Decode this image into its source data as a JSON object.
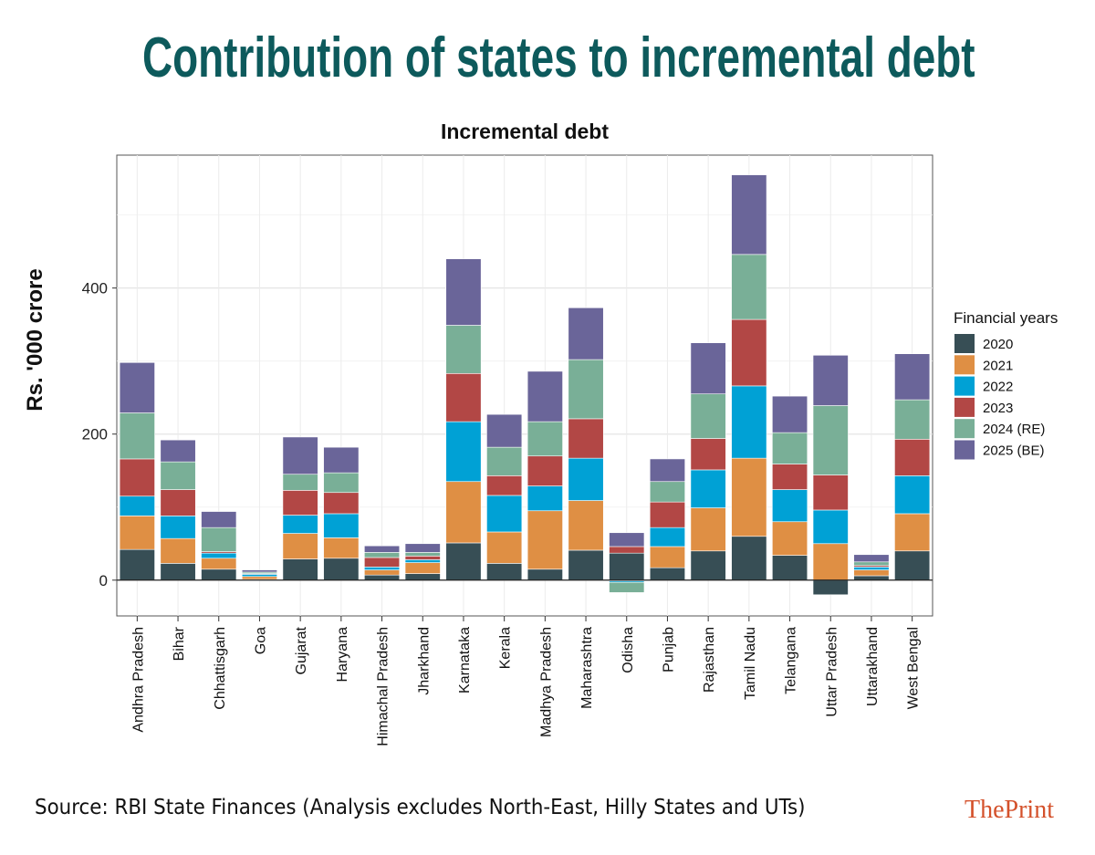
{
  "header": {
    "title": "Contribution of states to incremental debt"
  },
  "footer": {
    "source": "Source: RBI State Finances (Analysis excludes North-East, Hilly States and UTs)",
    "logo": "ThePrint"
  },
  "chart_data": {
    "type": "bar",
    "stacked": true,
    "title": "Incremental debt",
    "xlabel": "",
    "ylabel": "Rs. '000 crore",
    "ylim": [
      -49,
      582
    ],
    "yticks": [
      0,
      200,
      400
    ],
    "grid": true,
    "legend": {
      "title": "Financial years",
      "placement": "right"
    },
    "categories": [
      "Andhra Pradesh",
      "Bihar",
      "Chhattisgarh",
      "Goa",
      "Gujarat",
      "Haryana",
      "Himachal Pradesh",
      "Jharkhand",
      "Karnataka",
      "Kerala",
      "Madhya Pradesh",
      "Maharashtra",
      "Odisha",
      "Punjab",
      "Rajasthan",
      "Tamil Nadu",
      "Telangana",
      "Uttar Pradesh",
      "Uttarakhand",
      "West Bengal"
    ],
    "series": [
      {
        "name": "2020",
        "color": "#374e55",
        "values": [
          42,
          23,
          15,
          1,
          29,
          30,
          7,
          9,
          51,
          23,
          15,
          41,
          37,
          17,
          40,
          60,
          34,
          -20,
          6,
          40
        ]
      },
      {
        "name": "2021",
        "color": "#df8f44",
        "values": [
          46,
          34,
          15,
          4,
          35,
          28,
          7,
          15,
          84,
          43,
          80,
          68,
          -1,
          29,
          59,
          107,
          46,
          50,
          8,
          51
        ]
      },
      {
        "name": "2022",
        "color": "#00a1d5",
        "values": [
          27,
          31,
          7,
          3,
          25,
          33,
          4,
          4,
          82,
          50,
          34,
          58,
          -2,
          26,
          52,
          99,
          44,
          46,
          4,
          52
        ]
      },
      {
        "name": "2023",
        "color": "#b24745",
        "values": [
          51,
          36,
          2,
          1,
          34,
          29,
          13,
          5,
          66,
          27,
          41,
          54,
          9,
          35,
          43,
          91,
          35,
          48,
          2,
          50
        ]
      },
      {
        "name": "2024 (RE)",
        "color": "#79af97",
        "values": [
          63,
          38,
          33,
          2,
          22,
          27,
          7,
          5,
          66,
          39,
          47,
          81,
          -14,
          28,
          61,
          89,
          43,
          95,
          5,
          54
        ]
      },
      {
        "name": "2025 (BE)",
        "color": "#6a6599",
        "values": [
          69,
          30,
          22,
          3,
          51,
          35,
          9,
          12,
          91,
          45,
          69,
          71,
          19,
          31,
          70,
          109,
          50,
          69,
          10,
          63
        ]
      }
    ]
  }
}
